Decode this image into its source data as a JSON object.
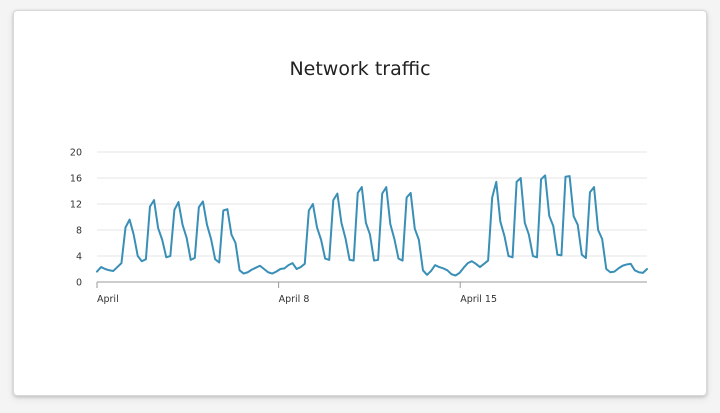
{
  "chart_data": {
    "type": "line",
    "title": "Network traffic",
    "xlabel": "",
    "ylabel": "",
    "ylim": [
      0,
      20
    ],
    "yticks": [
      0,
      4,
      8,
      12,
      16,
      20
    ],
    "xticks": [
      {
        "day": 1,
        "label": "April"
      },
      {
        "day": 8,
        "label": "April 8"
      },
      {
        "day": 15,
        "label": "April 15"
      }
    ],
    "xlim_days": [
      1,
      22.2
    ],
    "grid": true,
    "line_color": "#3a8fb7",
    "series": [
      {
        "values": [
          1.6,
          2.3,
          2.0,
          1.8,
          1.7,
          2.3,
          2.9,
          8.4,
          9.6,
          7.3,
          4.0,
          3.2,
          3.5,
          11.6,
          12.6,
          8.3,
          6.5,
          3.8,
          4.0,
          11.1,
          12.3,
          8.8,
          6.8,
          3.4,
          3.7,
          11.5,
          12.4,
          8.8,
          6.6,
          3.5,
          3.0,
          11.0,
          11.2,
          7.3,
          6.0,
          1.8,
          1.3,
          1.5,
          1.9,
          2.2,
          2.5,
          2.0,
          1.5,
          1.3,
          1.6,
          2.0,
          2.1,
          2.6,
          2.9,
          2.0,
          2.3,
          2.8,
          11.0,
          12.0,
          8.4,
          6.5,
          3.6,
          3.4,
          12.6,
          13.6,
          9.1,
          6.7,
          3.4,
          3.3,
          13.7,
          14.6,
          9.1,
          7.3,
          3.3,
          3.4,
          13.6,
          14.6,
          8.9,
          6.6,
          3.6,
          3.3,
          13.0,
          13.7,
          8.2,
          6.5,
          1.8,
          1.1,
          1.7,
          2.6,
          2.3,
          2.1,
          1.8,
          1.2,
          1.0,
          1.4,
          2.2,
          2.9,
          3.2,
          2.8,
          2.3,
          2.8,
          3.3,
          13.0,
          15.4,
          9.3,
          7.1,
          4.0,
          3.8,
          15.4,
          16.0,
          9.1,
          7.3,
          4.0,
          3.8,
          15.8,
          16.4,
          10.2,
          8.6,
          4.2,
          4.1,
          16.2,
          16.3,
          10.1,
          8.8,
          4.2,
          3.7,
          13.8,
          14.6,
          8.0,
          6.6,
          2.0,
          1.5,
          1.6,
          2.1,
          2.5,
          2.7,
          2.8,
          1.8,
          1.5,
          1.4,
          2.0
        ]
      }
    ]
  }
}
